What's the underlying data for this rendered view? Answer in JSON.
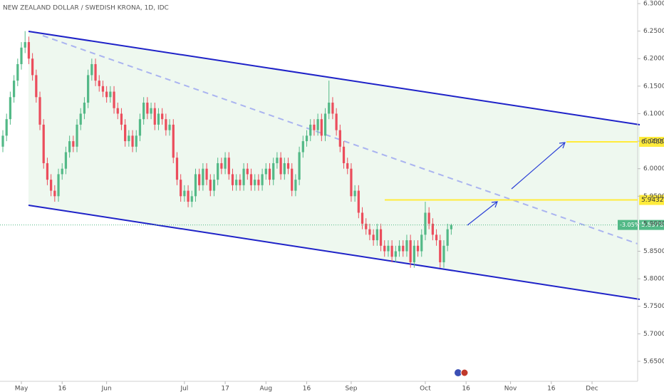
{
  "chart_data": {
    "type": "candlestick",
    "title": "NEW ZEALAND DOLLAR / SWEDISH KRONA, 1D, IDC",
    "open": [
      6.04,
      6.06,
      6.09,
      6.13,
      6.16,
      6.19,
      6.22,
      6.23,
      6.2,
      6.17,
      6.13,
      6.08,
      6.01,
      5.98,
      5.96,
      5.95,
      5.99,
      6.0,
      6.03,
      6.05,
      6.04,
      6.08,
      6.1,
      6.12,
      6.17,
      6.19,
      6.16,
      6.15,
      6.14,
      6.13,
      6.14,
      6.11,
      6.1,
      6.08,
      6.05,
      6.06,
      6.04,
      6.06,
      6.09,
      6.12,
      6.1,
      6.11,
      6.08,
      6.1,
      6.09,
      6.07,
      6.08,
      6.02,
      5.98,
      5.95,
      5.96,
      5.94,
      5.95,
      5.99,
      5.97,
      6.0,
      5.98,
      5.96,
      5.98,
      6.01,
      6.0,
      6.02,
      5.99,
      5.97,
      5.98,
      5.97,
      6.0,
      5.99,
      5.97,
      5.98,
      5.97,
      5.99,
      6.0,
      5.98,
      6.01,
      6.02,
      5.99,
      6.01,
      6.0,
      5.96,
      5.98,
      6.03,
      6.05,
      6.06,
      6.08,
      6.07,
      6.09,
      6.06,
      6.1,
      6.12,
      6.1,
      6.07,
      6.04,
      6.01,
      6.0,
      5.95,
      5.96,
      5.92,
      5.9,
      5.89,
      5.88,
      5.87,
      5.89,
      5.86,
      5.85,
      5.86,
      5.84,
      5.85,
      5.86,
      5.85,
      5.87,
      5.83,
      5.86,
      5.85,
      5.88,
      5.92,
      5.9,
      5.88,
      5.87,
      5.83,
      5.86,
      5.89
    ],
    "high": [
      6.07,
      6.1,
      6.14,
      6.17,
      6.2,
      6.23,
      6.25,
      6.24,
      6.21,
      6.18,
      6.14,
      6.09,
      6.02,
      5.99,
      5.97,
      6.0,
      6.01,
      6.04,
      6.06,
      6.06,
      6.09,
      6.11,
      6.13,
      6.18,
      6.2,
      6.2,
      6.17,
      6.16,
      6.15,
      6.15,
      6.15,
      6.12,
      6.11,
      6.09,
      6.07,
      6.07,
      6.07,
      6.1,
      6.13,
      6.13,
      6.12,
      6.12,
      6.11,
      6.11,
      6.1,
      6.09,
      6.09,
      6.03,
      5.99,
      5.97,
      5.97,
      5.96,
      6.0,
      6.0,
      6.01,
      6.01,
      5.99,
      5.99,
      6.02,
      6.02,
      6.03,
      6.03,
      6.0,
      5.99,
      5.99,
      6.01,
      6.01,
      6.0,
      5.99,
      5.99,
      6.0,
      6.01,
      6.01,
      6.02,
      6.03,
      6.03,
      6.02,
      6.02,
      6.01,
      5.99,
      6.04,
      6.06,
      6.07,
      6.09,
      6.09,
      6.1,
      6.1,
      6.11,
      6.16,
      6.13,
      6.11,
      6.08,
      6.05,
      6.02,
      6.01,
      5.97,
      5.97,
      5.93,
      5.91,
      5.9,
      5.89,
      5.9,
      5.9,
      5.87,
      5.87,
      5.87,
      5.86,
      5.87,
      5.87,
      5.88,
      5.88,
      5.87,
      5.87,
      5.89,
      5.94,
      5.93,
      5.91,
      5.89,
      5.88,
      5.87,
      5.9,
      5.9
    ],
    "low": [
      6.03,
      6.05,
      6.08,
      6.12,
      6.15,
      6.18,
      6.21,
      6.19,
      6.16,
      6.12,
      6.07,
      6.0,
      5.97,
      5.95,
      5.94,
      5.94,
      5.98,
      5.99,
      6.02,
      6.03,
      6.03,
      6.07,
      6.09,
      6.11,
      6.16,
      6.15,
      6.14,
      6.13,
      6.12,
      6.12,
      6.1,
      6.09,
      6.07,
      6.04,
      6.04,
      6.03,
      6.03,
      6.05,
      6.08,
      6.09,
      6.09,
      6.07,
      6.07,
      6.08,
      6.06,
      6.06,
      6.01,
      5.97,
      5.94,
      5.94,
      5.93,
      5.93,
      5.94,
      5.96,
      5.96,
      5.97,
      5.95,
      5.95,
      5.97,
      5.99,
      5.99,
      5.98,
      5.96,
      5.96,
      5.96,
      5.96,
      5.98,
      5.96,
      5.96,
      5.96,
      5.96,
      5.98,
      5.97,
      5.97,
      6.0,
      5.98,
      5.98,
      5.99,
      5.95,
      5.95,
      5.97,
      6.02,
      6.04,
      6.05,
      6.06,
      6.06,
      6.05,
      6.05,
      6.09,
      6.09,
      6.06,
      6.03,
      6.0,
      5.99,
      5.94,
      5.94,
      5.91,
      5.89,
      5.88,
      5.87,
      5.86,
      5.86,
      5.85,
      5.84,
      5.84,
      5.83,
      5.83,
      5.84,
      5.84,
      5.84,
      5.82,
      5.82,
      5.84,
      5.84,
      5.87,
      5.89,
      5.87,
      5.86,
      5.82,
      5.82,
      5.85,
      5.88
    ],
    "close": [
      6.06,
      6.09,
      6.13,
      6.16,
      6.19,
      6.22,
      6.23,
      6.2,
      6.17,
      6.13,
      6.08,
      6.01,
      5.98,
      5.96,
      5.95,
      5.99,
      6.0,
      6.03,
      6.05,
      6.04,
      6.08,
      6.1,
      6.12,
      6.17,
      6.19,
      6.16,
      6.15,
      6.14,
      6.13,
      6.14,
      6.11,
      6.1,
      6.08,
      6.05,
      6.06,
      6.04,
      6.06,
      6.09,
      6.12,
      6.1,
      6.11,
      6.08,
      6.1,
      6.09,
      6.07,
      6.08,
      6.02,
      5.98,
      5.95,
      5.96,
      5.94,
      5.95,
      5.99,
      5.97,
      6.0,
      5.98,
      5.96,
      5.98,
      6.01,
      6.0,
      6.02,
      5.99,
      5.97,
      5.98,
      5.97,
      6.0,
      5.99,
      5.97,
      5.98,
      5.97,
      5.99,
      6.0,
      5.98,
      6.01,
      6.02,
      5.99,
      6.01,
      6.0,
      5.96,
      5.98,
      6.03,
      6.05,
      6.06,
      6.08,
      6.07,
      6.09,
      6.06,
      6.1,
      6.12,
      6.1,
      6.07,
      6.04,
      6.01,
      6.0,
      5.95,
      5.96,
      5.92,
      5.9,
      5.89,
      5.88,
      5.87,
      5.89,
      5.86,
      5.85,
      5.86,
      5.84,
      5.85,
      5.86,
      5.85,
      5.87,
      5.83,
      5.86,
      5.85,
      5.88,
      5.92,
      5.9,
      5.88,
      5.87,
      5.83,
      5.86,
      5.89,
      5.8978
    ],
    "up_color": "#53b987",
    "down_color": "#eb4d5c",
    "xlim": [
      -0.77,
      171.3
    ],
    "xticks": [
      {
        "value": 5,
        "label": "May"
      },
      {
        "value": 16,
        "label": "16"
      },
      {
        "value": 28,
        "label": "Jun"
      },
      {
        "value": 49,
        "label": "Jul"
      },
      {
        "value": 60,
        "label": "17"
      },
      {
        "value": 71,
        "label": "Aug"
      },
      {
        "value": 82,
        "label": "16"
      },
      {
        "value": 94,
        "label": "Sep"
      },
      {
        "value": 114,
        "label": "Oct"
      },
      {
        "value": 125,
        "label": "16"
      },
      {
        "value": 137,
        "label": "Nov"
      },
      {
        "value": 148,
        "label": "16"
      },
      {
        "value": 159,
        "label": "Dec"
      }
    ],
    "ylim": [
      5.6137,
      6.3065
    ],
    "yticks": [
      {
        "value": 5.65,
        "label": "5.6500"
      },
      {
        "value": 5.7,
        "label": "5.7000"
      },
      {
        "value": 5.75,
        "label": "5.7500"
      },
      {
        "value": 5.8,
        "label": "5.8000"
      },
      {
        "value": 5.85,
        "label": "5.8500"
      },
      {
        "value": 5.9,
        "label": "5.9000"
      },
      {
        "value": 5.95,
        "label": "5.9500"
      },
      {
        "value": 6.0,
        "label": "6.0000"
      },
      {
        "value": 6.05,
        "label": "6.0500"
      },
      {
        "value": 6.1,
        "label": "6.1000"
      },
      {
        "value": 6.15,
        "label": "6.1500"
      },
      {
        "value": 6.2,
        "label": "6.2000"
      },
      {
        "value": 6.25,
        "label": "6.2500"
      },
      {
        "value": 6.3,
        "label": "6.3000"
      }
    ],
    "levels": [
      {
        "value": 5.9432,
        "label": "5.9432"
      },
      {
        "value": 6.0488,
        "label": "6.0488"
      }
    ],
    "level_color": "#ffeb3b",
    "last_price": {
      "value": 5.8978,
      "label": "5.8978"
    },
    "change_label": "-3.05%"
  }
}
